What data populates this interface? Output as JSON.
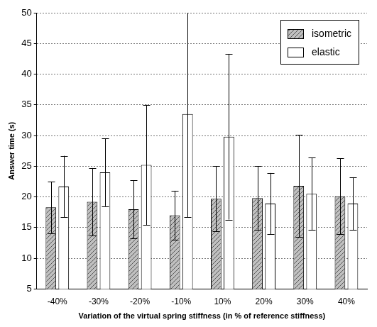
{
  "chart_data": {
    "type": "bar",
    "x_label": "Variation of the virtual spring stiffness (in % of reference stiffness)",
    "y_label": "Answer time (s)",
    "categories": [
      "-40%",
      "-30%",
      "-20%",
      "-10%",
      "10%",
      "20%",
      "30%",
      "40%"
    ],
    "series": [
      {
        "name": "isometric",
        "color": "#c0c0c0",
        "values": [
          18.3,
          19.2,
          18.0,
          17.0,
          19.7,
          19.8,
          21.8,
          20.1
        ],
        "errors": [
          4.2,
          5.5,
          4.7,
          4.0,
          5.3,
          5.2,
          8.3,
          6.2
        ]
      },
      {
        "name": "elastic",
        "color": "#ffffff",
        "values": [
          21.7,
          24.0,
          25.2,
          33.5,
          29.8,
          18.9,
          20.5,
          18.9
        ],
        "errors": [
          5.0,
          5.5,
          9.8,
          16.8,
          13.5,
          5.0,
          5.9,
          4.3
        ]
      }
    ],
    "ylim": [
      5,
      50
    ],
    "yticks": [
      5,
      10,
      15,
      20,
      25,
      30,
      35,
      40,
      45,
      50
    ],
    "grid": true,
    "legend": "upper right"
  }
}
